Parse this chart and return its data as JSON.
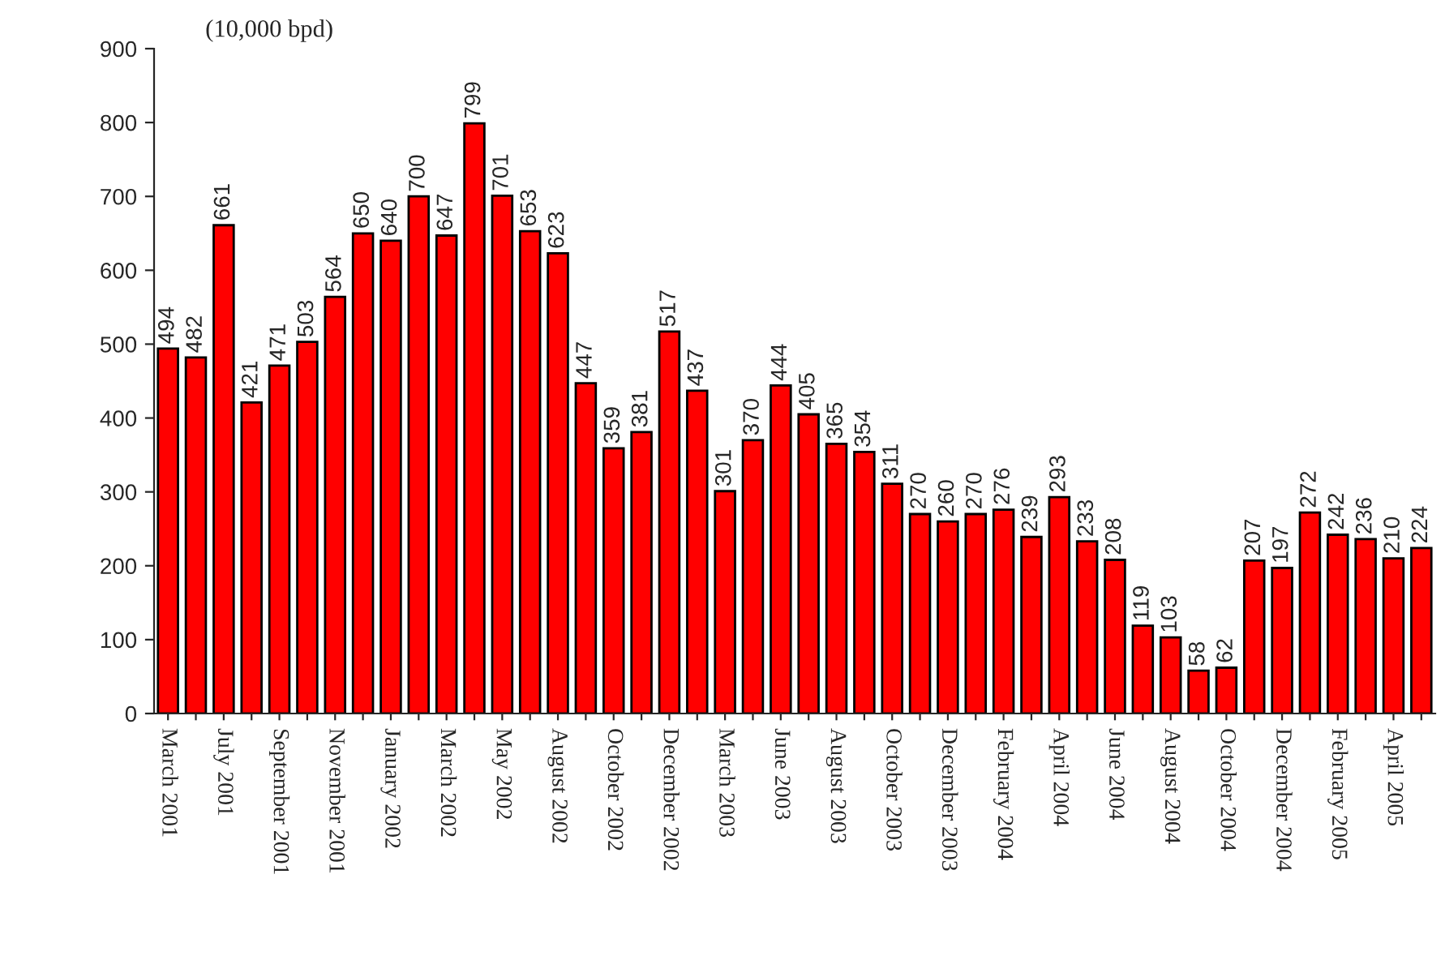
{
  "chart_data": {
    "type": "bar",
    "ylabel": "(10,000 bpd)",
    "categories": [
      "March 2001",
      null,
      "July 2001",
      null,
      "September 2001",
      null,
      "November 2001",
      null,
      "January 2002",
      null,
      "March 2002",
      null,
      "May 2002",
      null,
      "August 2002",
      null,
      "October 2002",
      null,
      "December 2002",
      null,
      "March 2003",
      null,
      "June 2003",
      null,
      "August 2003",
      null,
      "October 2003",
      null,
      "December 2003",
      null,
      "February 2004",
      null,
      "April 2004",
      null,
      "June 2004",
      null,
      "August 2004",
      null,
      "October 2004",
      null,
      "December 2004",
      null,
      "February 2005",
      null,
      "April 2005",
      null
    ],
    "values": [
      494,
      482,
      661,
      421,
      471,
      503,
      564,
      650,
      640,
      700,
      647,
      799,
      701,
      653,
      623,
      447,
      359,
      381,
      517,
      437,
      301,
      370,
      444,
      405,
      365,
      354,
      311,
      270,
      260,
      270,
      276,
      239,
      293,
      233,
      208,
      119,
      103,
      58,
      62,
      207,
      197,
      272,
      242,
      236,
      210,
      224
    ],
    "color": "#ff0000",
    "ylim": [
      0,
      900
    ],
    "yticks": [
      0,
      100,
      200,
      300,
      400,
      500,
      600,
      700,
      800,
      900
    ],
    "data_labels": true,
    "grid": false,
    "legend": false
  }
}
